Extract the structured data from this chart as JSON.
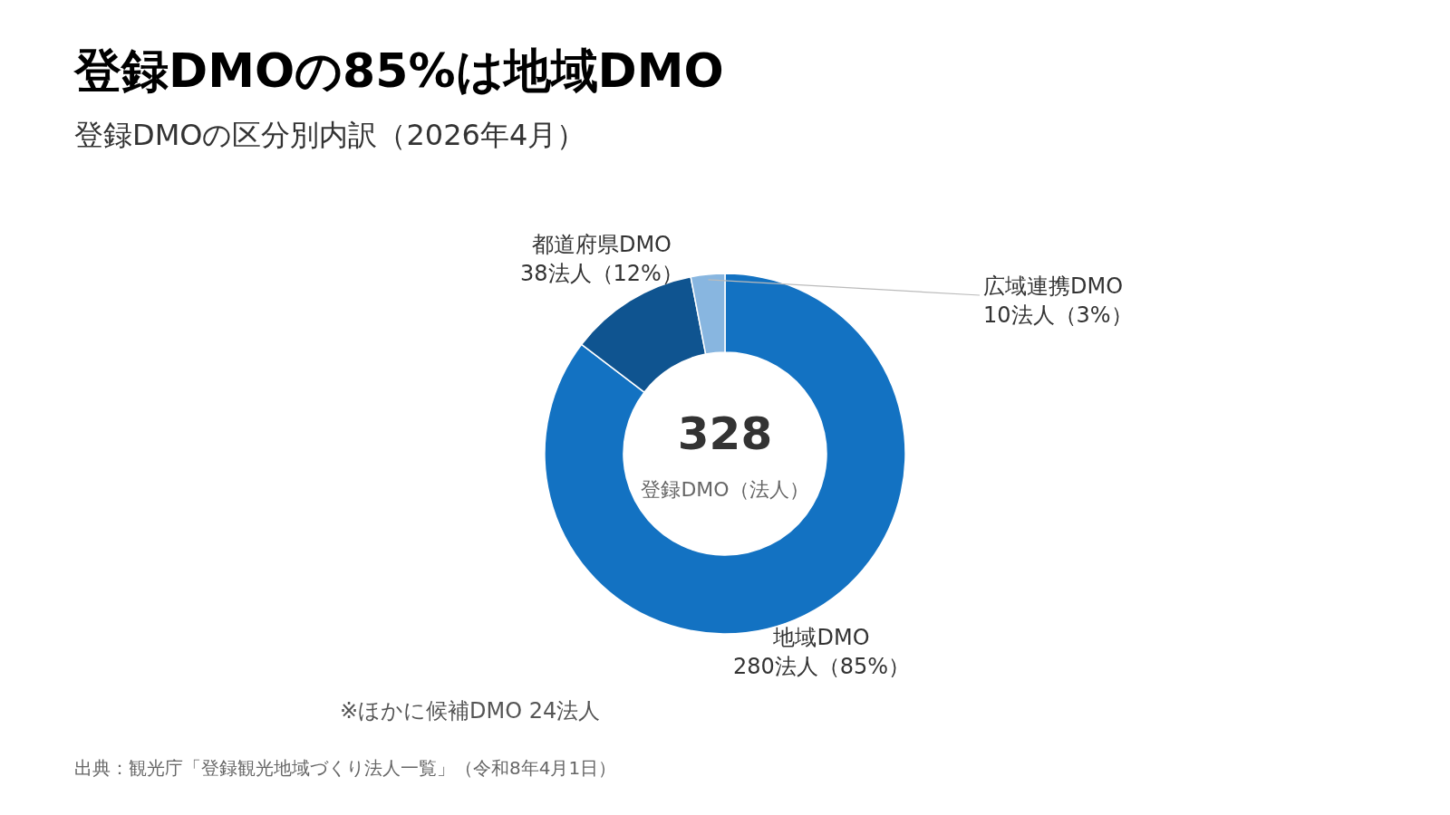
{
  "chart_data": {
    "type": "donut",
    "title": "登録DMOの85%は地域DMO",
    "subtitle": "登録DMOの区分別内訳（2026年4月）",
    "categories": [
      "地域DMO",
      "都道府県DMO",
      "広域連携DMO"
    ],
    "values": [
      280,
      38,
      10
    ],
    "value_labels": [
      "280法人（85%）",
      "38法人（12%）",
      "10法人（3%）"
    ],
    "colors": [
      "#1372c2",
      "#0f5490",
      "#88b6e0"
    ],
    "annotations": [
      "328",
      "登録DMO（法人）",
      "※ほかに候補DMO 24法人",
      "出典：観光庁「登録観光地域づくり法人一覧」（令和8年4月1日）"
    ]
  }
}
